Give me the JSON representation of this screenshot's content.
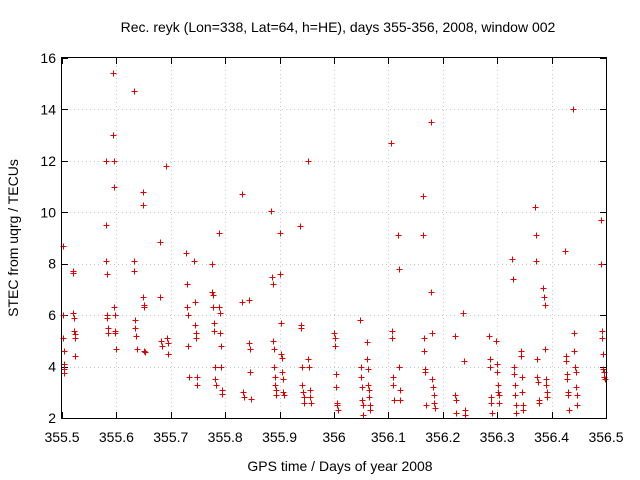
{
  "chart_data": {
    "type": "scatter",
    "title": "Rec. reyk (Lon=338, Lat=64, h=HE), days 355-356, 2008, window 002",
    "xlabel": "GPS time / Days of year 2008",
    "ylabel": "STEC from uqrg / TECUs",
    "xlim": [
      355.5,
      356.5
    ],
    "ylim": [
      2,
      16
    ],
    "xticks": [
      355.5,
      355.6,
      355.7,
      355.8,
      355.9,
      356.0,
      356.1,
      356.2,
      356.3,
      356.4,
      356.5
    ],
    "xtick_labels": [
      "355.5",
      "355.6",
      "355.7",
      "355.8",
      "355.9",
      "356",
      "356.1",
      "356.2",
      "356.3",
      "356.4",
      "356.5"
    ],
    "yticks": [
      2,
      4,
      6,
      8,
      10,
      12,
      14,
      16
    ],
    "ytick_labels": [
      "2",
      "4",
      "6",
      "8",
      "10",
      "12",
      "14",
      "16"
    ],
    "marker": "+",
    "color": "#dd0000",
    "series": [
      {
        "name": "STEC",
        "points": [
          [
            355.501,
            8.7
          ],
          [
            355.502,
            6.0
          ],
          [
            355.502,
            5.1
          ],
          [
            355.503,
            4.6
          ],
          [
            355.503,
            4.1
          ],
          [
            355.504,
            3.9
          ],
          [
            355.504,
            3.75
          ],
          [
            355.52,
            7.7
          ],
          [
            355.521,
            7.65
          ],
          [
            355.521,
            6.1
          ],
          [
            355.522,
            5.9
          ],
          [
            355.522,
            5.4
          ],
          [
            355.523,
            5.25
          ],
          [
            355.523,
            5.1
          ],
          [
            355.524,
            4.4
          ],
          [
            355.58,
            12.0
          ],
          [
            355.581,
            9.5
          ],
          [
            355.581,
            8.1
          ],
          [
            355.582,
            7.6
          ],
          [
            355.583,
            6.0
          ],
          [
            355.583,
            5.9
          ],
          [
            355.584,
            5.5
          ],
          [
            355.585,
            5.3
          ],
          [
            355.593,
            15.4
          ],
          [
            355.594,
            13.0
          ],
          [
            355.595,
            12.0
          ],
          [
            355.595,
            11.0
          ],
          [
            355.596,
            6.3
          ],
          [
            355.597,
            6.0
          ],
          [
            355.597,
            5.4
          ],
          [
            355.598,
            5.3
          ],
          [
            355.599,
            4.7
          ],
          [
            355.632,
            14.7
          ],
          [
            355.633,
            8.1
          ],
          [
            355.633,
            7.7
          ],
          [
            355.634,
            5.8
          ],
          [
            355.635,
            5.5
          ],
          [
            355.636,
            5.2
          ],
          [
            355.637,
            4.7
          ],
          [
            355.648,
            10.8
          ],
          [
            355.649,
            10.3
          ],
          [
            355.649,
            6.7
          ],
          [
            355.65,
            6.4
          ],
          [
            355.651,
            6.3
          ],
          [
            355.651,
            4.6
          ],
          [
            355.652,
            4.55
          ],
          [
            355.68,
            8.85
          ],
          [
            355.681,
            6.7
          ],
          [
            355.682,
            5.0
          ],
          [
            355.683,
            4.8
          ],
          [
            355.692,
            11.8
          ],
          [
            355.693,
            5.1
          ],
          [
            355.694,
            4.9
          ],
          [
            355.695,
            4.5
          ],
          [
            355.728,
            8.4
          ],
          [
            355.729,
            7.2
          ],
          [
            355.73,
            6.3
          ],
          [
            355.731,
            6.0
          ],
          [
            355.732,
            4.8
          ],
          [
            355.733,
            3.6
          ],
          [
            355.743,
            8.1
          ],
          [
            355.744,
            6.5
          ],
          [
            355.745,
            5.6
          ],
          [
            355.746,
            5.3
          ],
          [
            355.747,
            5.1
          ],
          [
            355.748,
            3.6
          ],
          [
            355.749,
            3.3
          ],
          [
            355.775,
            8.0
          ],
          [
            355.776,
            6.9
          ],
          [
            355.777,
            6.8
          ],
          [
            355.778,
            6.3
          ],
          [
            355.779,
            5.7
          ],
          [
            355.78,
            5.4
          ],
          [
            355.781,
            4.0
          ],
          [
            355.782,
            3.5
          ],
          [
            355.783,
            3.3
          ],
          [
            355.788,
            9.2
          ],
          [
            355.789,
            6.3
          ],
          [
            355.79,
            6.1
          ],
          [
            355.791,
            5.3
          ],
          [
            355.792,
            4.8
          ],
          [
            355.793,
            4.0
          ],
          [
            355.794,
            3.1
          ],
          [
            355.795,
            2.95
          ],
          [
            355.83,
            10.7
          ],
          [
            355.831,
            6.5
          ],
          [
            355.833,
            3.0
          ],
          [
            355.834,
            2.8
          ],
          [
            355.843,
            6.6
          ],
          [
            355.844,
            4.9
          ],
          [
            355.845,
            4.7
          ],
          [
            355.846,
            3.8
          ],
          [
            355.847,
            2.75
          ],
          [
            355.885,
            10.05
          ],
          [
            355.886,
            7.5
          ],
          [
            355.887,
            7.2
          ],
          [
            355.888,
            5.0
          ],
          [
            355.889,
            4.7
          ],
          [
            355.89,
            4.0
          ],
          [
            355.891,
            3.6
          ],
          [
            355.892,
            3.3
          ],
          [
            355.893,
            3.1
          ],
          [
            355.894,
            2.9
          ],
          [
            355.9,
            9.2
          ],
          [
            355.901,
            7.6
          ],
          [
            355.902,
            5.7
          ],
          [
            355.903,
            4.5
          ],
          [
            355.904,
            4.35
          ],
          [
            355.905,
            3.8
          ],
          [
            355.906,
            3.5
          ],
          [
            355.907,
            3.0
          ],
          [
            355.908,
            2.9
          ],
          [
            355.938,
            9.45
          ],
          [
            355.939,
            5.6
          ],
          [
            355.94,
            5.5
          ],
          [
            355.941,
            4.0
          ],
          [
            355.942,
            3.3
          ],
          [
            355.943,
            3.0
          ],
          [
            355.944,
            2.8
          ],
          [
            355.945,
            2.6
          ],
          [
            355.952,
            12.0
          ],
          [
            355.953,
            4.3
          ],
          [
            355.954,
            4.0
          ],
          [
            355.955,
            3.1
          ],
          [
            355.956,
            2.8
          ],
          [
            355.957,
            2.6
          ],
          [
            356.0,
            5.3
          ],
          [
            356.001,
            5.1
          ],
          [
            356.002,
            4.8
          ],
          [
            356.003,
            3.7
          ],
          [
            356.004,
            3.2
          ],
          [
            356.005,
            2.6
          ],
          [
            356.006,
            2.5
          ],
          [
            356.007,
            2.3
          ],
          [
            356.048,
            5.8
          ],
          [
            356.049,
            4.0
          ],
          [
            356.05,
            3.6
          ],
          [
            356.051,
            3.2
          ],
          [
            356.052,
            2.7
          ],
          [
            356.053,
            2.5
          ],
          [
            356.054,
            2.1
          ],
          [
            356.06,
            4.95
          ],
          [
            356.061,
            4.3
          ],
          [
            356.062,
            3.9
          ],
          [
            356.063,
            3.3
          ],
          [
            356.064,
            3.1
          ],
          [
            356.065,
            2.8
          ],
          [
            356.066,
            2.5
          ],
          [
            356.067,
            2.3
          ],
          [
            356.105,
            12.7
          ],
          [
            356.106,
            5.4
          ],
          [
            356.107,
            5.1
          ],
          [
            356.108,
            3.6
          ],
          [
            356.109,
            3.3
          ],
          [
            356.11,
            2.7
          ],
          [
            356.118,
            9.1
          ],
          [
            356.119,
            7.8
          ],
          [
            356.12,
            4.0
          ],
          [
            356.121,
            3.1
          ],
          [
            356.122,
            2.7
          ],
          [
            356.163,
            10.65
          ],
          [
            356.164,
            9.1
          ],
          [
            356.165,
            5.1
          ],
          [
            356.166,
            4.6
          ],
          [
            356.167,
            3.9
          ],
          [
            356.168,
            3.8
          ],
          [
            356.169,
            2.5
          ],
          [
            356.178,
            13.5
          ],
          [
            356.179,
            6.9
          ],
          [
            356.18,
            5.3
          ],
          [
            356.181,
            3.5
          ],
          [
            356.182,
            3.2
          ],
          [
            356.183,
            2.9
          ],
          [
            356.184,
            2.6
          ],
          [
            356.185,
            2.4
          ],
          [
            356.222,
            5.2
          ],
          [
            356.223,
            2.9
          ],
          [
            356.224,
            2.7
          ],
          [
            356.225,
            2.2
          ],
          [
            356.238,
            6.1
          ],
          [
            356.239,
            4.2
          ],
          [
            356.24,
            2.3
          ],
          [
            356.241,
            2.1
          ],
          [
            356.285,
            5.2
          ],
          [
            356.286,
            4.3
          ],
          [
            356.287,
            4.0
          ],
          [
            356.288,
            2.8
          ],
          [
            356.289,
            2.6
          ],
          [
            356.29,
            2.2
          ],
          [
            356.298,
            5.0
          ],
          [
            356.299,
            4.1
          ],
          [
            356.3,
            3.8
          ],
          [
            356.301,
            3.3
          ],
          [
            356.302,
            3.0
          ],
          [
            356.303,
            2.9
          ],
          [
            356.304,
            2.6
          ],
          [
            356.328,
            8.2
          ],
          [
            356.329,
            7.4
          ],
          [
            356.33,
            4.0
          ],
          [
            356.331,
            3.7
          ],
          [
            356.332,
            3.3
          ],
          [
            356.333,
            2.9
          ],
          [
            356.334,
            2.5
          ],
          [
            356.335,
            2.2
          ],
          [
            356.343,
            4.6
          ],
          [
            356.344,
            4.4
          ],
          [
            356.345,
            3.6
          ],
          [
            356.346,
            3.0
          ],
          [
            356.347,
            2.5
          ],
          [
            356.348,
            2.3
          ],
          [
            356.37,
            10.2
          ],
          [
            356.371,
            9.1
          ],
          [
            356.372,
            8.1
          ],
          [
            356.373,
            4.3
          ],
          [
            356.374,
            3.6
          ],
          [
            356.375,
            3.4
          ],
          [
            356.376,
            2.7
          ],
          [
            356.377,
            2.6
          ],
          [
            356.385,
            7.05
          ],
          [
            356.386,
            6.7
          ],
          [
            356.387,
            6.4
          ],
          [
            356.388,
            4.7
          ],
          [
            356.389,
            3.5
          ],
          [
            356.39,
            3.3
          ],
          [
            356.391,
            3.0
          ],
          [
            356.392,
            2.8
          ],
          [
            356.425,
            8.5
          ],
          [
            356.426,
            4.4
          ],
          [
            356.427,
            4.2
          ],
          [
            356.428,
            3.7
          ],
          [
            356.429,
            3.5
          ],
          [
            356.43,
            3.0
          ],
          [
            356.431,
            2.9
          ],
          [
            356.432,
            2.3
          ],
          [
            356.44,
            14.0
          ],
          [
            356.441,
            5.3
          ],
          [
            356.442,
            4.6
          ],
          [
            356.443,
            4.0
          ],
          [
            356.444,
            3.8
          ],
          [
            356.445,
            3.2
          ],
          [
            356.446,
            2.9
          ],
          [
            356.447,
            2.5
          ],
          [
            356.49,
            9.7
          ],
          [
            356.491,
            8.0
          ],
          [
            356.492,
            5.4
          ],
          [
            356.493,
            5.1
          ],
          [
            356.494,
            4.5
          ],
          [
            356.495,
            3.9
          ],
          [
            356.496,
            3.8
          ],
          [
            356.497,
            3.6
          ],
          [
            356.498,
            3.5
          ]
        ]
      }
    ]
  }
}
